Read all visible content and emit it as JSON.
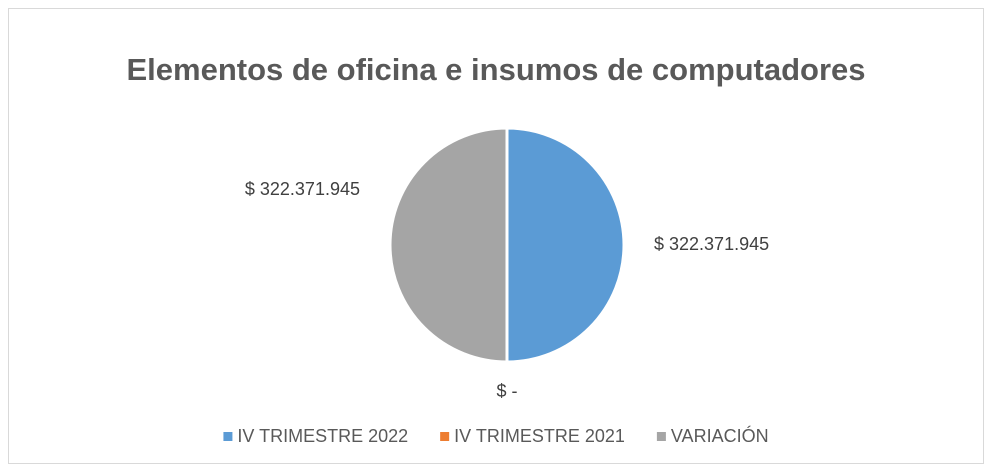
{
  "chart_data": {
    "type": "pie",
    "title": "Elementos de oficina e insumos de computadores",
    "categories": [
      "IV TRIMESTRE 2022",
      "IV TRIMESTRE 2021",
      "VARIACIÓN"
    ],
    "values": [
      322371945,
      0,
      322371945
    ],
    "value_labels": [
      "$ 322.371.945",
      "$ -",
      "$ 322.371.945"
    ],
    "colors": [
      "#5b9bd5",
      "#ed7d31",
      "#a5a5a5"
    ],
    "legend": "bottom"
  }
}
